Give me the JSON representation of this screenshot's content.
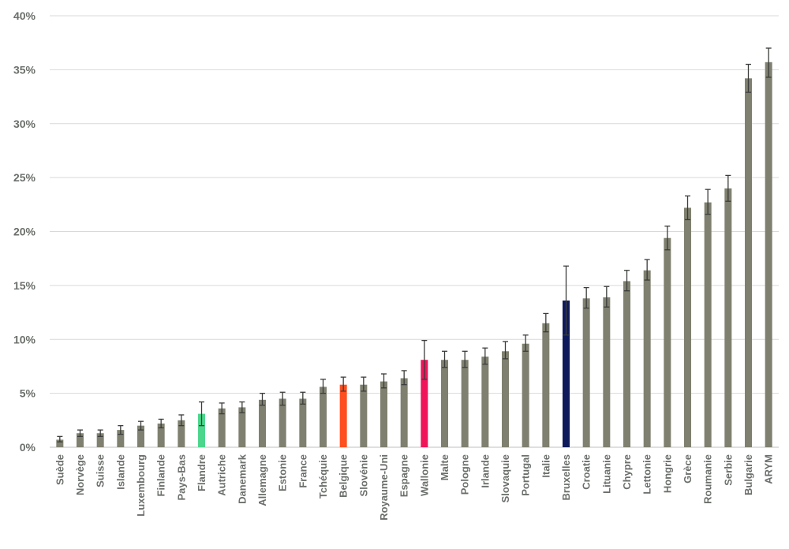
{
  "chart_data": {
    "type": "bar",
    "title": "",
    "xlabel": "",
    "ylabel": "",
    "ylim": [
      0,
      40
    ],
    "yticks": [
      0,
      5,
      10,
      15,
      20,
      25,
      30,
      35,
      40
    ],
    "ytick_labels": [
      "0%",
      "5%",
      "10%",
      "15%",
      "20%",
      "25%",
      "30%",
      "35%",
      "40%"
    ],
    "grid": true,
    "legend": "none",
    "colors": {
      "default": "#808070",
      "Flandre": "#4cd68d",
      "Belgique": "#ff4f1e",
      "Wallonie": "#f0145a",
      "Bruxelles": "#0e1a5c",
      "error_bar": "#3a3d3a",
      "grid": "#d9d9d9",
      "text": "#6b6f6b"
    },
    "categories": [
      "Suède",
      "Norvège",
      "Suisse",
      "Islande",
      "Luxembourg",
      "Finlande",
      "Pays-Bas",
      "Flandre",
      "Autriche",
      "Danemark",
      "Allemagne",
      "Estonie",
      "France",
      "Tchéquie",
      "Belgique",
      "Slovénie",
      "Royaume-Uni",
      "Espagne",
      "Wallonie",
      "Malte",
      "Pologne",
      "Irlande",
      "Slovaquie",
      "Portugal",
      "Italie",
      "Bruxelles",
      "Croatie",
      "Lituanie",
      "Chypre",
      "Lettonie",
      "Hongrie",
      "Grèce",
      "Roumanie",
      "Serbie",
      "Bulgarie",
      "ARYM"
    ],
    "values": [
      0.7,
      1.3,
      1.3,
      1.6,
      2.0,
      2.2,
      2.5,
      3.1,
      3.6,
      3.7,
      4.4,
      4.5,
      4.5,
      5.6,
      5.8,
      5.8,
      6.1,
      6.4,
      8.1,
      8.1,
      8.1,
      8.4,
      8.9,
      9.6,
      11.5,
      13.6,
      13.8,
      13.9,
      15.4,
      16.4,
      19.4,
      22.2,
      22.7,
      24.0,
      34.2,
      35.7
    ],
    "error_low": [
      0.5,
      1.0,
      1.0,
      1.2,
      1.6,
      1.8,
      2.0,
      2.0,
      3.1,
      3.2,
      3.9,
      3.9,
      4.0,
      5.0,
      5.2,
      5.2,
      5.5,
      5.8,
      6.3,
      7.4,
      7.4,
      7.7,
      8.2,
      8.9,
      10.7,
      10.4,
      12.9,
      13.0,
      14.5,
      15.5,
      18.3,
      21.1,
      21.6,
      22.8,
      32.9,
      34.3
    ],
    "error_high": [
      1.0,
      1.6,
      1.6,
      2.0,
      2.4,
      2.6,
      3.0,
      4.2,
      4.1,
      4.2,
      5.0,
      5.1,
      5.1,
      6.3,
      6.5,
      6.5,
      6.8,
      7.1,
      9.9,
      8.9,
      8.9,
      9.2,
      9.8,
      10.4,
      12.4,
      16.8,
      14.8,
      14.9,
      16.4,
      17.4,
      20.5,
      23.3,
      23.9,
      25.2,
      35.5,
      37.0
    ]
  }
}
